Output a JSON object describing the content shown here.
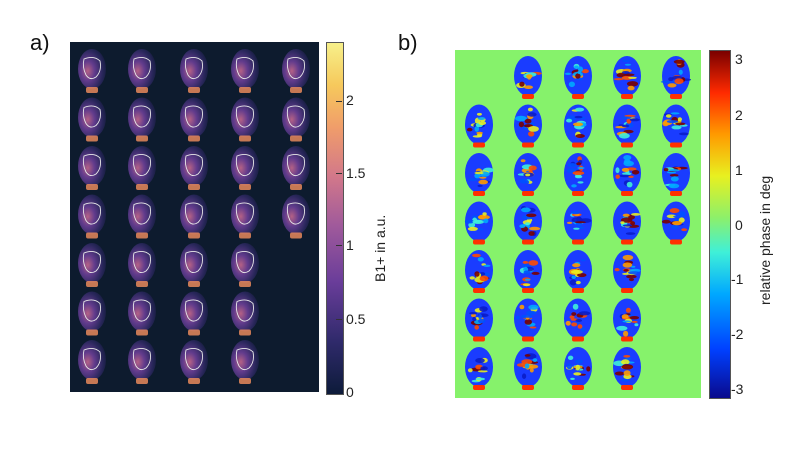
{
  "panel_a": {
    "letter": "a)",
    "colorbar_label": "B1+ in a.u.",
    "colorbar_ticks": [
      "2",
      "1.5",
      "1",
      "0.5",
      "0"
    ],
    "colors": {
      "background": "#0d1b2e",
      "roi_outline": "#e8e8e8"
    }
  },
  "panel_b": {
    "letter": "b)",
    "colorbar_label": "relative phase in deg",
    "colorbar_ticks": [
      "3",
      "2",
      "1",
      "0",
      "-1",
      "-2",
      "-3"
    ],
    "colors": {
      "background": "#86f26b"
    }
  }
}
